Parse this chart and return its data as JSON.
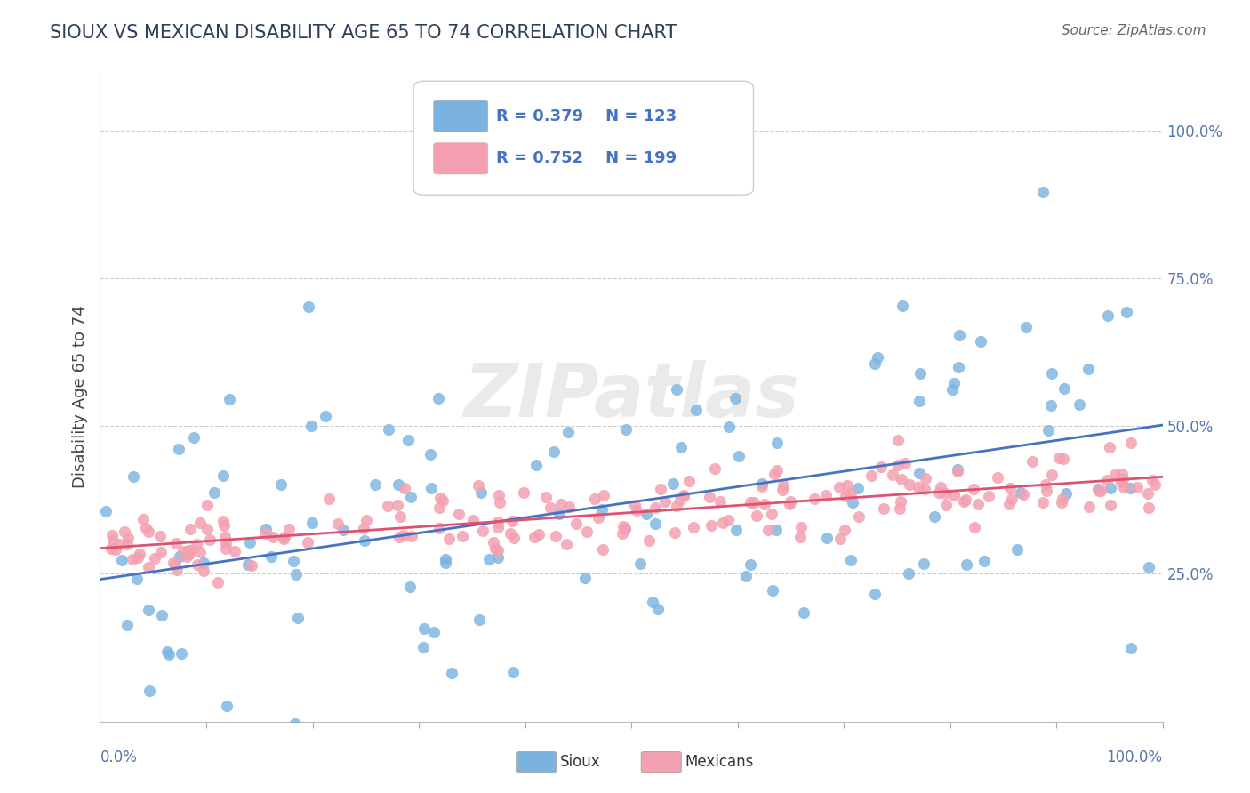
{
  "title": "SIOUX VS MEXICAN DISABILITY AGE 65 TO 74 CORRELATION CHART",
  "source": "Source: ZipAtlas.com",
  "ylabel": "Disability Age 65 to 74",
  "sioux_R": 0.379,
  "sioux_N": 123,
  "mexican_R": 0.752,
  "mexican_N": 199,
  "sioux_color": "#7ab3e0",
  "mexican_color": "#f4a0b0",
  "sioux_line_color": "#4472c4",
  "mexican_line_color": "#e05070",
  "title_color": "#2e4057",
  "legend_r_color": "#4472c4",
  "watermark": "ZIPatlas",
  "bg_color": "#ffffff",
  "grid_color": "#cccccc",
  "yticks": [
    0.25,
    0.5,
    0.75,
    1.0
  ],
  "ytick_labels": [
    "25.0%",
    "50.0%",
    "75.0%",
    "100.0%"
  ]
}
